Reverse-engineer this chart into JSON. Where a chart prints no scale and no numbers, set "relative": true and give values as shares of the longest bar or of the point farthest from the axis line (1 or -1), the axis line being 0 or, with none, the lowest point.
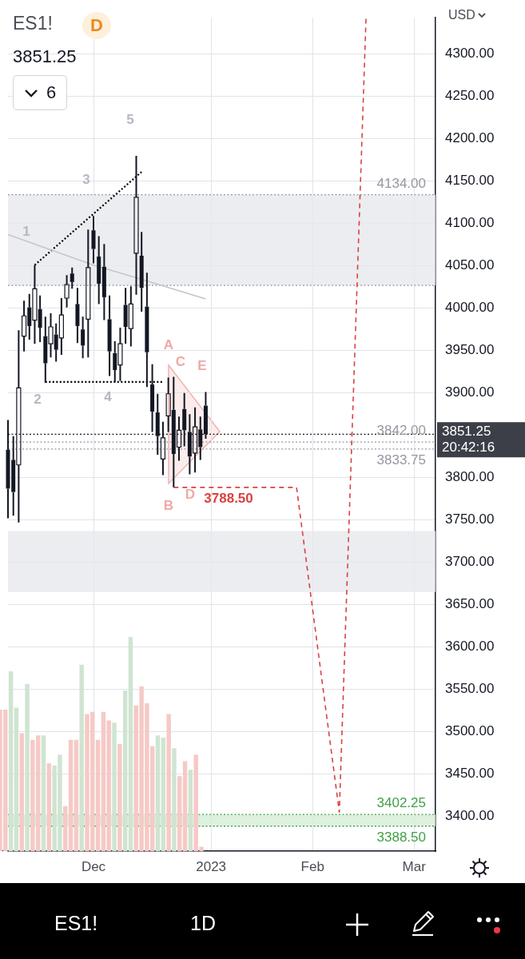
{
  "chart_data": [
    {
      "type": "candlestick",
      "title": "ES1!",
      "subtitle": "3851.25",
      "ylabel": "USD",
      "annotations": [
        "D",
        "20:42:16",
        "6",
        "1D",
        "1",
        "2",
        "3",
        "4",
        "5",
        "A",
        "B",
        "C",
        "D",
        "E"
      ],
      "categories": [
        null,
        null,
        null,
        null,
        null,
        null,
        null,
        null,
        null,
        null,
        null,
        null,
        null,
        null,
        null,
        null,
        "Dec",
        null,
        null,
        null,
        null,
        null,
        null,
        null,
        null,
        null,
        null,
        null,
        null,
        null,
        null,
        null,
        null,
        null,
        null,
        null,
        null,
        null,
        "2023",
        null,
        null,
        null,
        null,
        null,
        null,
        null,
        null,
        null,
        null,
        null,
        null,
        null,
        null,
        null,
        null,
        null,
        null,
        "Feb",
        null,
        null,
        null,
        null,
        null,
        null,
        null,
        null,
        null,
        null,
        null,
        null,
        null,
        null,
        null,
        null,
        null,
        null,
        "Mar",
        null,
        null,
        null,
        null
      ],
      "color": "#131722",
      "ohlc": [
        [
          3833,
          3868,
          3752,
          3787
        ],
        [
          3821,
          3849,
          3755,
          3783
        ],
        [
          3815,
          3974,
          3747,
          3906
        ],
        [
          3967,
          4009,
          3949,
          3991
        ],
        [
          4001,
          4017,
          3963,
          3979
        ],
        [
          3986,
          4051,
          3958,
          4023
        ],
        [
          3999,
          4015,
          3960,
          3977
        ],
        [
          3967,
          3990,
          3912,
          3935
        ],
        [
          3958,
          3994,
          3942,
          3978
        ],
        [
          3969,
          3982,
          3937,
          3951
        ],
        [
          3965,
          4012,
          3945,
          3992
        ],
        [
          4012,
          4039,
          4001,
          4028
        ],
        [
          4041,
          4048,
          4023,
          4031
        ],
        [
          4005,
          4024,
          3959,
          3979
        ],
        [
          3975,
          3990,
          3941,
          3956
        ],
        [
          3987,
          4093,
          3942,
          4048
        ],
        [
          4092,
          4109,
          4053,
          4070
        ],
        [
          4061,
          4085,
          4005,
          4029
        ],
        [
          4049,
          4076,
          3986,
          4013
        ],
        [
          3987,
          4015,
          3920,
          3949
        ],
        [
          3947,
          3961,
          3913,
          3927
        ],
        [
          3933,
          3977,
          3914,
          3958
        ],
        [
          4004,
          4024,
          3958,
          3978
        ],
        [
          3976,
          4026,
          3955,
          4005
        ],
        [
          4065,
          4180,
          4016,
          4131
        ],
        [
          4062,
          4090,
          3996,
          4024
        ],
        [
          4002,
          4042,
          3907,
          3948
        ],
        [
          3910,
          3934,
          3854,
          3878
        ],
        [
          3877,
          3899,
          3827,
          3849
        ],
        [
          3822,
          3866,
          3803,
          3847
        ],
        [
          3873,
          3918,
          3854,
          3899
        ],
        [
          3880,
          3919,
          3788.5,
          3828
        ],
        [
          3836,
          3872,
          3820,
          3856
        ],
        [
          3881,
          3900,
          3837,
          3856
        ],
        [
          3854,
          3875,
          3804,
          3825
        ],
        [
          3829,
          3883,
          3806,
          3860
        ],
        [
          3857,
          3872,
          3821,
          3836
        ],
        [
          3885,
          3901,
          3846,
          3851.25
        ],
        null,
        null,
        null,
        null,
        null,
        null,
        null,
        null,
        null,
        null,
        null,
        null,
        null,
        null,
        null,
        null,
        null,
        null,
        null,
        null,
        null,
        null,
        null,
        null,
        null,
        null,
        null,
        null,
        null,
        null,
        null,
        null,
        null,
        null,
        null,
        null,
        null,
        null,
        null,
        null,
        null,
        null,
        null
      ],
      "series": [
        {
          "type": "line",
          "color": "#c4c7ce",
          "line_style": "solid",
          "values": [
            4087,
            null,
            null,
            null,
            null,
            null,
            null,
            null,
            null,
            null,
            null,
            null,
            null,
            null,
            null,
            null,
            4051,
            null,
            null,
            null,
            null,
            null,
            null,
            null,
            4036,
            null,
            null,
            null,
            null,
            null,
            null,
            null,
            null,
            null,
            null,
            null,
            null,
            4011,
            null,
            null,
            null,
            null,
            null,
            null,
            null,
            null,
            null,
            null,
            null,
            null,
            null,
            null,
            null,
            null,
            null,
            null,
            null,
            null,
            null,
            null,
            null,
            null,
            null,
            null,
            null,
            null,
            null,
            null,
            null,
            null,
            null,
            null,
            null,
            null,
            null,
            null,
            null,
            null,
            null,
            null,
            null
          ]
        },
        {
          "type": "line",
          "color": "#d9423f",
          "line_style": "dashed",
          "values": [
            null,
            null,
            null,
            null,
            null,
            null,
            null,
            null,
            null,
            null,
            null,
            null,
            null,
            null,
            null,
            null,
            null,
            null,
            null,
            null,
            null,
            null,
            null,
            null,
            null,
            null,
            null,
            null,
            null,
            null,
            null,
            3788.5,
            null,
            null,
            null,
            null,
            null,
            null,
            null,
            null,
            null,
            null,
            null,
            null,
            null,
            null,
            null,
            null,
            null,
            null,
            null,
            null,
            null,
            null,
            3788.5,
            null,
            null,
            null,
            null,
            null,
            null,
            null,
            3405,
            null,
            null,
            null,
            null,
            4343,
            null,
            null,
            null,
            null,
            null,
            null,
            null,
            null,
            null,
            null,
            null,
            null,
            null
          ],
          "value_labels": [
            null,
            null,
            null,
            null,
            null,
            null,
            null,
            null,
            null,
            null,
            null,
            null,
            null,
            null,
            null,
            null,
            null,
            null,
            null,
            null,
            null,
            null,
            null,
            null,
            null,
            null,
            null,
            null,
            null,
            null,
            null,
            "3788.50",
            null,
            null,
            null,
            null,
            null,
            null,
            null,
            null,
            null,
            null,
            null,
            null,
            null,
            null,
            null,
            null,
            null,
            null,
            null,
            null,
            null,
            null,
            null,
            null,
            null,
            null,
            null,
            null,
            null,
            null,
            null,
            null,
            null,
            null,
            null,
            null,
            null,
            null,
            null,
            null,
            null,
            null,
            null,
            null,
            null,
            null,
            null,
            null,
            null
          ]
        },
        {
          "type": "line",
          "color": "#000000",
          "line_style": "dotted",
          "values": [
            null,
            null,
            null,
            null,
            null,
            4051,
            null,
            null,
            null,
            null,
            null,
            null,
            null,
            null,
            null,
            null,
            null,
            null,
            null,
            null,
            null,
            null,
            null,
            null,
            null,
            4161,
            null,
            null,
            null,
            null,
            null,
            null,
            null,
            null,
            null,
            null,
            null,
            null,
            null,
            null,
            null,
            null,
            null,
            null,
            null,
            null,
            null,
            null,
            null,
            null,
            null,
            null,
            null,
            null,
            null,
            null,
            null,
            null,
            null,
            null,
            null,
            null,
            null,
            null,
            null,
            null,
            null,
            null,
            null,
            null,
            null,
            null,
            null,
            null,
            null,
            null,
            null,
            null,
            null,
            null,
            null
          ]
        },
        {
          "type": "line",
          "color": "#000000",
          "line_style": "dotted",
          "values": [
            null,
            null,
            null,
            null,
            null,
            null,
            null,
            3913,
            null,
            null,
            null,
            null,
            null,
            null,
            null,
            null,
            null,
            null,
            null,
            null,
            null,
            null,
            null,
            null,
            null,
            null,
            null,
            null,
            null,
            3913,
            null,
            null,
            null,
            null,
            null,
            null,
            null,
            null,
            null,
            null,
            null,
            null,
            null,
            null,
            null,
            null,
            null,
            null,
            null,
            null,
            null,
            null,
            null,
            null,
            null,
            null,
            null,
            null,
            null,
            null,
            null,
            null,
            null,
            null,
            null,
            null,
            null,
            null,
            null,
            null,
            null,
            null,
            null,
            null,
            null,
            null,
            null,
            null,
            null,
            null,
            null
          ]
        }
      ],
      "ylim": [
        3359,
        4343
      ],
      "yticks": [
        {
          "value": 3400,
          "label": "3400.00"
        },
        {
          "value": 3450,
          "label": "3450.00"
        },
        {
          "value": 3500,
          "label": "3500.00"
        },
        {
          "value": 3550,
          "label": "3550.00"
        },
        {
          "value": 3600,
          "label": "3600.00"
        },
        {
          "value": 3650,
          "label": "3650.00"
        },
        {
          "value": 3700,
          "label": "3700.00"
        },
        {
          "value": 3750,
          "label": "3750.00"
        },
        {
          "value": 3800,
          "label": "3800.00"
        },
        {
          "value": 3850,
          "label": null
        },
        {
          "value": 3900,
          "label": "3900.00"
        },
        {
          "value": 3950,
          "label": "3950.00"
        },
        {
          "value": 4000,
          "label": "4000.00"
        },
        {
          "value": 4050,
          "label": "4050.00"
        },
        {
          "value": 4100,
          "label": "4100.00"
        },
        {
          "value": 4150,
          "label": "4150.00"
        },
        {
          "value": 4200,
          "label": "4200.00"
        },
        {
          "value": 4250,
          "label": "4250.00"
        },
        {
          "value": 4300,
          "label": "4300.00"
        }
      ],
      "grid": true,
      "marker": "none",
      "ref_lines": [
        {
          "axis": "y",
          "value": 4134,
          "label": "4134.00",
          "color": "#9598a1",
          "line_style": "dotted"
        },
        {
          "axis": "y",
          "value": 4027,
          "color": "#9598a1",
          "line_style": "dotted"
        },
        {
          "axis": "y",
          "value": 3851.25,
          "label": "3851.25",
          "color": "#131722",
          "line_style": "dotted"
        },
        {
          "axis": "y",
          "value": 3842,
          "label": "3842.00",
          "color": "#9598a1",
          "line_style": "dotted"
        },
        {
          "axis": "y",
          "value": 3833.75,
          "label": "3833.75",
          "color": "#9598a1",
          "line_style": "dotted"
        },
        {
          "axis": "y",
          "value": 3402.25,
          "label": "3402.25",
          "color": "#43a047",
          "line_style": "dotted"
        },
        {
          "axis": "y",
          "value": 3388.5,
          "label": "3388.50",
          "color": "#43a047",
          "line_style": "dotted"
        }
      ],
      "bands": [
        {
          "axis": "y",
          "from": 4027,
          "to": 4134,
          "color": "#e6e8ec"
        },
        {
          "axis": "y",
          "from": 3665,
          "to": 3737,
          "color": "#e6e8ec"
        },
        {
          "axis": "y",
          "from": 3388.5,
          "to": 3402.25,
          "color": "#d6edd6"
        }
      ]
    },
    {
      "type": "bar",
      "relative": true,
      "tick_labels": false,
      "categories": [
        null,
        null,
        null,
        null,
        null,
        null,
        null,
        null,
        null,
        null,
        null,
        null,
        null,
        null,
        null,
        null,
        null,
        null,
        null,
        null,
        null,
        null,
        null,
        null,
        null,
        null,
        null,
        null,
        null,
        null,
        null,
        null,
        null,
        null,
        null,
        null,
        null,
        null
      ],
      "series": [
        {
          "values": [
            0.66,
            0.66,
            0.84,
            0.67,
            0.55,
            0.78,
            0.52,
            0.54,
            0.54,
            0.41,
            0.4,
            0.45,
            0.21,
            0.52,
            0.52,
            0.87,
            0.64,
            0.65,
            0.52,
            0.65,
            0.61,
            0.6,
            0.5,
            0.75,
            1,
            0.68,
            0.77,
            0.69,
            0.49,
            0.54,
            0.53,
            0.64,
            0.48,
            0.35,
            0.42,
            0.38,
            0.45,
            0.02
          ],
          "colors": [
            "#f6c9c6",
            "#f6c9c6",
            "#cfe4d1",
            "#cfe4d1",
            "#f6c9c6",
            "#cfe4d1",
            "#f6c9c6",
            "#f6c9c6",
            "#cfe4d1",
            "#f6c9c6",
            "#cfe4d1",
            "#cfe4d1",
            "#f6c9c6",
            "#f6c9c6",
            "#f6c9c6",
            "#cfe4d1",
            "#f6c9c6",
            "#f6c9c6",
            "#f6c9c6",
            "#f6c9c6",
            "#f6c9c6",
            "#cfe4d1",
            "#f6c9c6",
            "#cfe4d1",
            "#cfe4d1",
            "#f6c9c6",
            "#f6c9c6",
            "#f6c9c6",
            "#f6c9c6",
            "#cfe4d1",
            "#cfe4d1",
            "#f6c9c6",
            "#cfe4d1",
            "#f6c9c6",
            "#f6c9c6",
            "#cfe4d1",
            "#f6c9c6",
            "#f6c9c6"
          ]
        }
      ]
    }
  ]
}
